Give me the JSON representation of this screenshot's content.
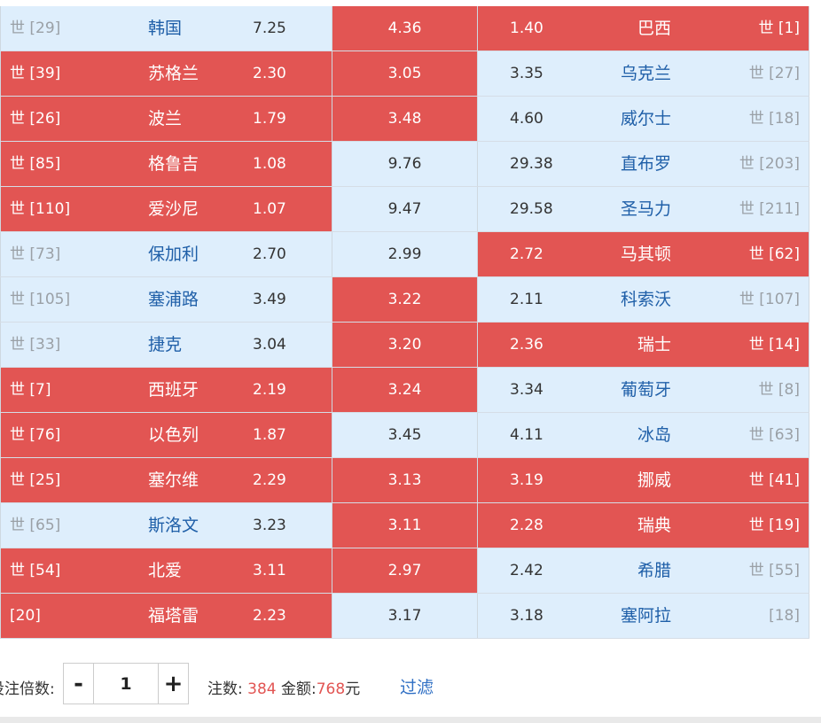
{
  "matches": [
    {
      "home_rank": "世 [29]",
      "home": "韩国",
      "home_odds": "7.25",
      "draw_odds": "4.36",
      "away_odds": "1.40",
      "away": "巴西",
      "away_rank": "世 [1]",
      "sel": [
        false,
        true,
        true
      ]
    },
    {
      "home_rank": "世 [39]",
      "home": "苏格兰",
      "home_odds": "2.30",
      "draw_odds": "3.05",
      "away_odds": "3.35",
      "away": "乌克兰",
      "away_rank": "世 [27]",
      "sel": [
        true,
        true,
        false
      ]
    },
    {
      "home_rank": "世 [26]",
      "home": "波兰",
      "home_odds": "1.79",
      "draw_odds": "3.48",
      "away_odds": "4.60",
      "away": "威尔士",
      "away_rank": "世 [18]",
      "sel": [
        true,
        true,
        false
      ]
    },
    {
      "home_rank": "世 [85]",
      "home": "格鲁吉",
      "home_odds": "1.08",
      "draw_odds": "9.76",
      "away_odds": "29.38",
      "away": "直布罗",
      "away_rank": "世 [203]",
      "sel": [
        true,
        false,
        false
      ]
    },
    {
      "home_rank": "世 [110]",
      "home": "爱沙尼",
      "home_odds": "1.07",
      "draw_odds": "9.47",
      "away_odds": "29.58",
      "away": "圣马力",
      "away_rank": "世 [211]",
      "sel": [
        true,
        false,
        false
      ]
    },
    {
      "home_rank": "世 [73]",
      "home": "保加利",
      "home_odds": "2.70",
      "draw_odds": "2.99",
      "away_odds": "2.72",
      "away": "马其顿",
      "away_rank": "世 [62]",
      "sel": [
        false,
        false,
        true
      ]
    },
    {
      "home_rank": "世 [105]",
      "home": "塞浦路",
      "home_odds": "3.49",
      "draw_odds": "3.22",
      "away_odds": "2.11",
      "away": "科索沃",
      "away_rank": "世 [107]",
      "sel": [
        false,
        true,
        false
      ]
    },
    {
      "home_rank": "世 [33]",
      "home": "捷克",
      "home_odds": "3.04",
      "draw_odds": "3.20",
      "away_odds": "2.36",
      "away": "瑞士",
      "away_rank": "世 [14]",
      "sel": [
        false,
        true,
        true
      ]
    },
    {
      "home_rank": "世 [7]",
      "home": "西班牙",
      "home_odds": "2.19",
      "draw_odds": "3.24",
      "away_odds": "3.34",
      "away": "葡萄牙",
      "away_rank": "世 [8]",
      "sel": [
        true,
        true,
        false
      ]
    },
    {
      "home_rank": "世 [76]",
      "home": "以色列",
      "home_odds": "1.87",
      "draw_odds": "3.45",
      "away_odds": "4.11",
      "away": "冰岛",
      "away_rank": "世 [63]",
      "sel": [
        true,
        false,
        false
      ]
    },
    {
      "home_rank": "世 [25]",
      "home": "塞尔维",
      "home_odds": "2.29",
      "draw_odds": "3.13",
      "away_odds": "3.19",
      "away": "挪威",
      "away_rank": "世 [41]",
      "sel": [
        true,
        true,
        true
      ]
    },
    {
      "home_rank": "世 [65]",
      "home": "斯洛文",
      "home_odds": "3.23",
      "draw_odds": "3.11",
      "away_odds": "2.28",
      "away": "瑞典",
      "away_rank": "世 [19]",
      "sel": [
        false,
        true,
        true
      ]
    },
    {
      "home_rank": "世 [54]",
      "home": "北爱",
      "home_odds": "3.11",
      "draw_odds": "2.97",
      "away_odds": "2.42",
      "away": "希腊",
      "away_rank": "世 [55]",
      "sel": [
        true,
        true,
        false
      ]
    },
    {
      "home_rank": "[20]",
      "home": "福塔雷",
      "home_odds": "2.23",
      "draw_odds": "3.17",
      "away_odds": "3.18",
      "away": "塞阿拉",
      "away_rank": "[18]",
      "sel": [
        true,
        false,
        false
      ]
    }
  ],
  "footer": {
    "multiplier_label": "投注倍数:",
    "minus": "-",
    "multiplier_value": "1",
    "plus": "+",
    "bets_label": "注数:",
    "bets_value": "384",
    "amount_label": "金额:",
    "amount_value": "768",
    "amount_unit": "元",
    "filter_label": "过滤"
  },
  "colors": {
    "selected_bg": "#e25553",
    "unselected_bg": "#deeefc",
    "team_text": "#1f5fa8",
    "rank_text": "#9aa0a6",
    "link": "#2f6fc4"
  }
}
